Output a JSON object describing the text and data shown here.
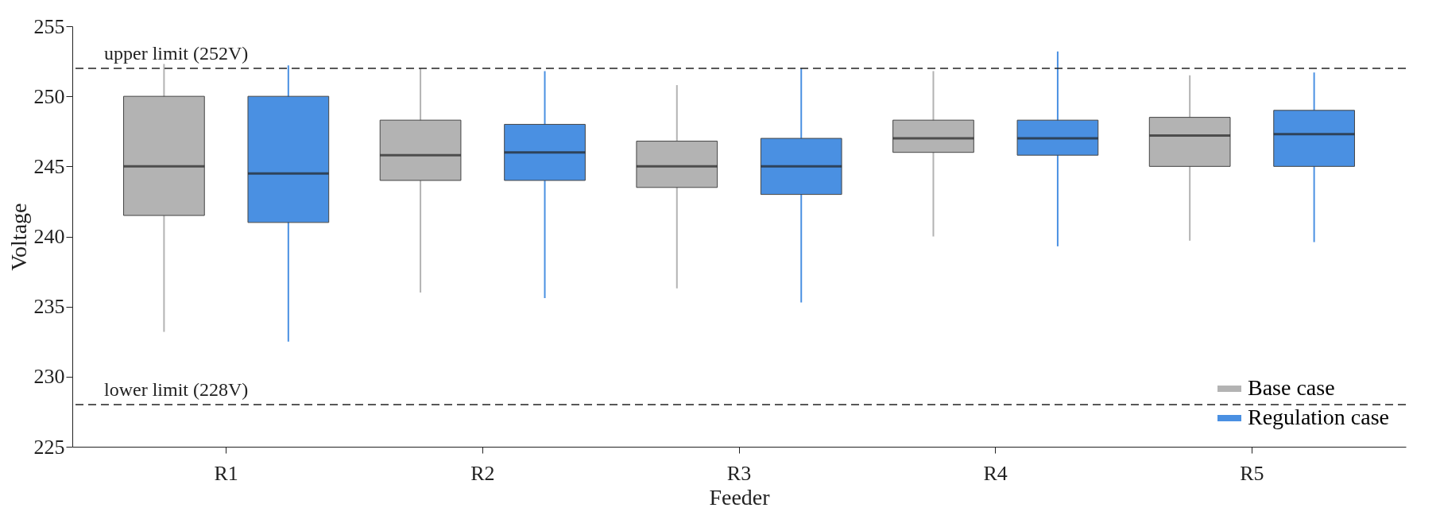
{
  "chart_data": {
    "type": "box",
    "xlabel": "Feeder",
    "ylabel": "Voltage",
    "categories": [
      "R1",
      "R2",
      "R3",
      "R4",
      "R5"
    ],
    "ylim": [
      225,
      255
    ],
    "yticks": [
      225,
      230,
      235,
      240,
      245,
      250,
      255
    ],
    "grid": false,
    "legend": "bottom right",
    "series": [
      {
        "name": "Base case",
        "color": "#b3b3b3",
        "boxes": [
          {
            "low": 233.2,
            "q1": 241.5,
            "median": 245,
            "q3": 250,
            "high": 252.3
          },
          {
            "low": 236,
            "q1": 244,
            "median": 245.8,
            "q3": 248.3,
            "high": 252
          },
          {
            "low": 236.3,
            "q1": 243.5,
            "median": 245,
            "q3": 246.8,
            "high": 250.8
          },
          {
            "low": 240,
            "q1": 246,
            "median": 247,
            "q3": 248.3,
            "high": 251.8
          },
          {
            "low": 239.7,
            "q1": 245,
            "median": 247.2,
            "q3": 248.5,
            "high": 251.5
          }
        ]
      },
      {
        "name": "Regulation case",
        "color": "#4a90e2",
        "boxes": [
          {
            "low": 232.5,
            "q1": 241,
            "median": 244.5,
            "q3": 250,
            "high": 252.2
          },
          {
            "low": 235.6,
            "q1": 244,
            "median": 246,
            "q3": 248,
            "high": 251.8
          },
          {
            "low": 235.3,
            "q1": 243,
            "median": 245,
            "q3": 247,
            "high": 252
          },
          {
            "low": 239.3,
            "q1": 245.8,
            "median": 247,
            "q3": 248.3,
            "high": 253.2
          },
          {
            "low": 239.6,
            "q1": 245,
            "median": 247.3,
            "q3": 249,
            "high": 251.7
          }
        ]
      }
    ],
    "ref_lines": [
      {
        "axis": "y",
        "value": 252,
        "label": "upper limit (252V)",
        "color": "#222222",
        "line_style": "dashed"
      },
      {
        "axis": "y",
        "value": 228,
        "label": "lower limit (228V)",
        "color": "#222222",
        "line_style": "dashed"
      }
    ]
  }
}
